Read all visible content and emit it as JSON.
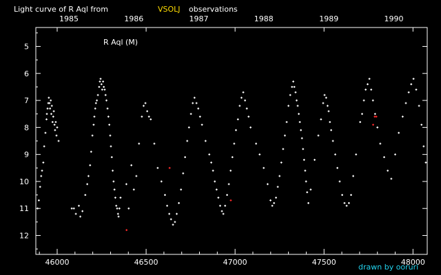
{
  "chart_data": {
    "type": "scatter",
    "title": {
      "prefix": "Light curve of R Aql from",
      "source": "VSOLJ",
      "suffix": "observations"
    },
    "star_label": "R Aql (M)",
    "credit": "drawn by ooruri",
    "xlabel": "",
    "ylabel": "",
    "xlim": [
      45880,
      48080
    ],
    "ylim_inverted": [
      4.3,
      12.7
    ],
    "x_ticks": [
      46000,
      46500,
      47000,
      47500,
      48000
    ],
    "y_ticks": [
      5,
      6,
      7,
      8,
      9,
      10,
      11,
      12
    ],
    "year_ticks": [
      {
        "label": "1985",
        "jd": 46066
      },
      {
        "label": "1986",
        "jd": 46431
      },
      {
        "label": "1987",
        "jd": 46796
      },
      {
        "label": "1988",
        "jd": 47161
      },
      {
        "label": "1989",
        "jd": 47527
      },
      {
        "label": "1990",
        "jd": 47892
      }
    ],
    "colors": {
      "visual": "#ffffff",
      "red": "#ff2a2a",
      "title_source": "#ffdd00",
      "credit": "#22d3ee",
      "background": "#000000"
    },
    "series": [
      {
        "color": "#ffffff",
        "points": [
          [
            45890,
            11.0
          ],
          [
            45897,
            10.7
          ],
          [
            45904,
            10.2
          ],
          [
            45910,
            9.8
          ],
          [
            45915,
            9.6
          ],
          [
            45922,
            9.3
          ],
          [
            45927,
            8.7
          ],
          [
            45934,
            8.2
          ],
          [
            45940,
            7.7
          ],
          [
            45942,
            7.5
          ],
          [
            45946,
            7.3
          ],
          [
            45950,
            7.1
          ],
          [
            45953,
            6.9
          ],
          [
            45957,
            7.1
          ],
          [
            45960,
            7.3
          ],
          [
            45964,
            7.0
          ],
          [
            45967,
            7.5
          ],
          [
            45970,
            7.2
          ],
          [
            45974,
            7.8
          ],
          [
            45978,
            7.6
          ],
          [
            45981,
            7.4
          ],
          [
            45985,
            7.9
          ],
          [
            45988,
            8.1
          ],
          [
            45992,
            7.8
          ],
          [
            45996,
            8.3
          ],
          [
            46000,
            8.0
          ],
          [
            46008,
            8.5
          ],
          [
            46082,
            11.0
          ],
          [
            46094,
            11.0
          ],
          [
            46105,
            11.2
          ],
          [
            46122,
            10.9
          ],
          [
            46130,
            11.3
          ],
          [
            46142,
            11.1
          ],
          [
            46158,
            10.5
          ],
          [
            46169,
            10.1
          ],
          [
            46176,
            9.8
          ],
          [
            46185,
            9.4
          ],
          [
            46191,
            8.9
          ],
          [
            46198,
            8.3
          ],
          [
            46205,
            7.9
          ],
          [
            46209,
            7.6
          ],
          [
            46214,
            7.3
          ],
          [
            46218,
            7.1
          ],
          [
            46223,
            7.0
          ],
          [
            46229,
            6.8
          ],
          [
            46236,
            6.5
          ],
          [
            46240,
            6.3
          ],
          [
            46244,
            6.2
          ],
          [
            46249,
            6.4
          ],
          [
            46253,
            6.6
          ],
          [
            46258,
            6.3
          ],
          [
            46262,
            6.5
          ],
          [
            46267,
            6.6
          ],
          [
            46272,
            6.8
          ],
          [
            46277,
            7.0
          ],
          [
            46283,
            7.3
          ],
          [
            46288,
            7.6
          ],
          [
            46293,
            7.9
          ],
          [
            46298,
            8.3
          ],
          [
            46302,
            8.7
          ],
          [
            46307,
            9.1
          ],
          [
            46312,
            9.6
          ],
          [
            46317,
            10.0
          ],
          [
            46322,
            10.3
          ],
          [
            46327,
            10.6
          ],
          [
            46332,
            10.9
          ],
          [
            46337,
            11.0
          ],
          [
            46342,
            11.2
          ],
          [
            46345,
            11.3
          ],
          [
            46350,
            11.0
          ],
          [
            46356,
            10.6
          ],
          [
            46389,
            10.1
          ],
          [
            46402,
            11.0
          ],
          [
            46417,
            9.4
          ],
          [
            46431,
            10.3
          ],
          [
            46445,
            9.8
          ],
          [
            46460,
            8.6
          ],
          [
            46476,
            7.6
          ],
          [
            46486,
            7.2
          ],
          [
            46496,
            7.1
          ],
          [
            46506,
            7.4
          ],
          [
            46516,
            7.6
          ],
          [
            46526,
            7.7
          ],
          [
            46546,
            8.6
          ],
          [
            46565,
            9.5
          ],
          [
            46586,
            10.0
          ],
          [
            46606,
            10.5
          ],
          [
            46618,
            10.9
          ],
          [
            46630,
            11.2
          ],
          [
            46640,
            11.4
          ],
          [
            46651,
            11.6
          ],
          [
            46662,
            11.5
          ],
          [
            46672,
            11.2
          ],
          [
            46684,
            10.8
          ],
          [
            46696,
            10.3
          ],
          [
            46708,
            9.7
          ],
          [
            46719,
            9.1
          ],
          [
            46731,
            8.5
          ],
          [
            46741,
            8.0
          ],
          [
            46752,
            7.5
          ],
          [
            46762,
            7.1
          ],
          [
            46772,
            6.9
          ],
          [
            46783,
            7.1
          ],
          [
            46793,
            7.3
          ],
          [
            46803,
            7.6
          ],
          [
            46814,
            7.9
          ],
          [
            46834,
            8.5
          ],
          [
            46855,
            9.0
          ],
          [
            46866,
            9.3
          ],
          [
            46876,
            9.6
          ],
          [
            46886,
            10.0
          ],
          [
            46896,
            10.3
          ],
          [
            46906,
            10.6
          ],
          [
            46916,
            10.9
          ],
          [
            46926,
            11.1
          ],
          [
            46934,
            11.2
          ],
          [
            46944,
            10.9
          ],
          [
            46955,
            10.5
          ],
          [
            46965,
            10.1
          ],
          [
            46975,
            9.6
          ],
          [
            46985,
            9.1
          ],
          [
            46995,
            8.6
          ],
          [
            47005,
            8.1
          ],
          [
            47016,
            7.7
          ],
          [
            47026,
            7.2
          ],
          [
            47036,
            6.9
          ],
          [
            47046,
            6.7
          ],
          [
            47056,
            7.0
          ],
          [
            47066,
            7.3
          ],
          [
            47076,
            7.6
          ],
          [
            47087,
            8.0
          ],
          [
            47118,
            8.6
          ],
          [
            47138,
            9.0
          ],
          [
            47161,
            9.5
          ],
          [
            47183,
            10.1
          ],
          [
            47199,
            10.7
          ],
          [
            47209,
            10.9
          ],
          [
            47219,
            10.8
          ],
          [
            47230,
            10.6
          ],
          [
            47240,
            10.2
          ],
          [
            47250,
            9.8
          ],
          [
            47260,
            9.3
          ],
          [
            47270,
            8.8
          ],
          [
            47280,
            8.3
          ],
          [
            47290,
            7.8
          ],
          [
            47300,
            7.2
          ],
          [
            47310,
            6.8
          ],
          [
            47320,
            6.5
          ],
          [
            47327,
            6.3
          ],
          [
            47333,
            6.5
          ],
          [
            47340,
            6.7
          ],
          [
            47346,
            7.0
          ],
          [
            47352,
            7.2
          ],
          [
            47358,
            7.5
          ],
          [
            47364,
            7.8
          ],
          [
            47370,
            8.1
          ],
          [
            47376,
            8.4
          ],
          [
            47382,
            8.8
          ],
          [
            47388,
            9.2
          ],
          [
            47394,
            9.6
          ],
          [
            47399,
            10.0
          ],
          [
            47405,
            10.4
          ],
          [
            47412,
            10.8
          ],
          [
            47425,
            10.3
          ],
          [
            47447,
            9.2
          ],
          [
            47468,
            8.3
          ],
          [
            47483,
            7.7
          ],
          [
            47495,
            7.1
          ],
          [
            47503,
            6.8
          ],
          [
            47512,
            6.9
          ],
          [
            47520,
            7.2
          ],
          [
            47526,
            7.4
          ],
          [
            47533,
            7.8
          ],
          [
            47540,
            8.1
          ],
          [
            47550,
            8.5
          ],
          [
            47563,
            9.0
          ],
          [
            47575,
            9.5
          ],
          [
            47588,
            10.0
          ],
          [
            47602,
            10.5
          ],
          [
            47615,
            10.8
          ],
          [
            47627,
            10.9
          ],
          [
            47640,
            10.8
          ],
          [
            47652,
            10.5
          ],
          [
            47664,
            9.8
          ],
          [
            47680,
            9.0
          ],
          [
            47703,
            7.8
          ],
          [
            47714,
            7.5
          ],
          [
            47724,
            7.0
          ],
          [
            47734,
            6.6
          ],
          [
            47745,
            6.4
          ],
          [
            47755,
            6.2
          ],
          [
            47765,
            6.6
          ],
          [
            47775,
            7.0
          ],
          [
            47787,
            7.5
          ],
          [
            47800,
            8.0
          ],
          [
            47816,
            8.6
          ],
          [
            47838,
            9.1
          ],
          [
            47858,
            9.6
          ],
          [
            47878,
            9.9
          ],
          [
            47900,
            9.0
          ],
          [
            47920,
            8.2
          ],
          [
            47942,
            7.6
          ],
          [
            47960,
            7.1
          ],
          [
            47976,
            6.7
          ],
          [
            47990,
            6.4
          ],
          [
            48003,
            6.2
          ],
          [
            48018,
            6.6
          ],
          [
            48034,
            7.2
          ],
          [
            48048,
            7.9
          ],
          [
            48060,
            8.7
          ],
          [
            48072,
            9.3
          ]
        ]
      },
      {
        "color": "#ff2a2a",
        "points": [
          [
            46390,
            11.8
          ],
          [
            46632,
            9.5
          ],
          [
            46976,
            10.7
          ],
          [
            47785,
            7.6
          ],
          [
            47794,
            7.6
          ],
          [
            47776,
            7.9
          ]
        ]
      }
    ],
    "grid": false,
    "legend": "none"
  }
}
